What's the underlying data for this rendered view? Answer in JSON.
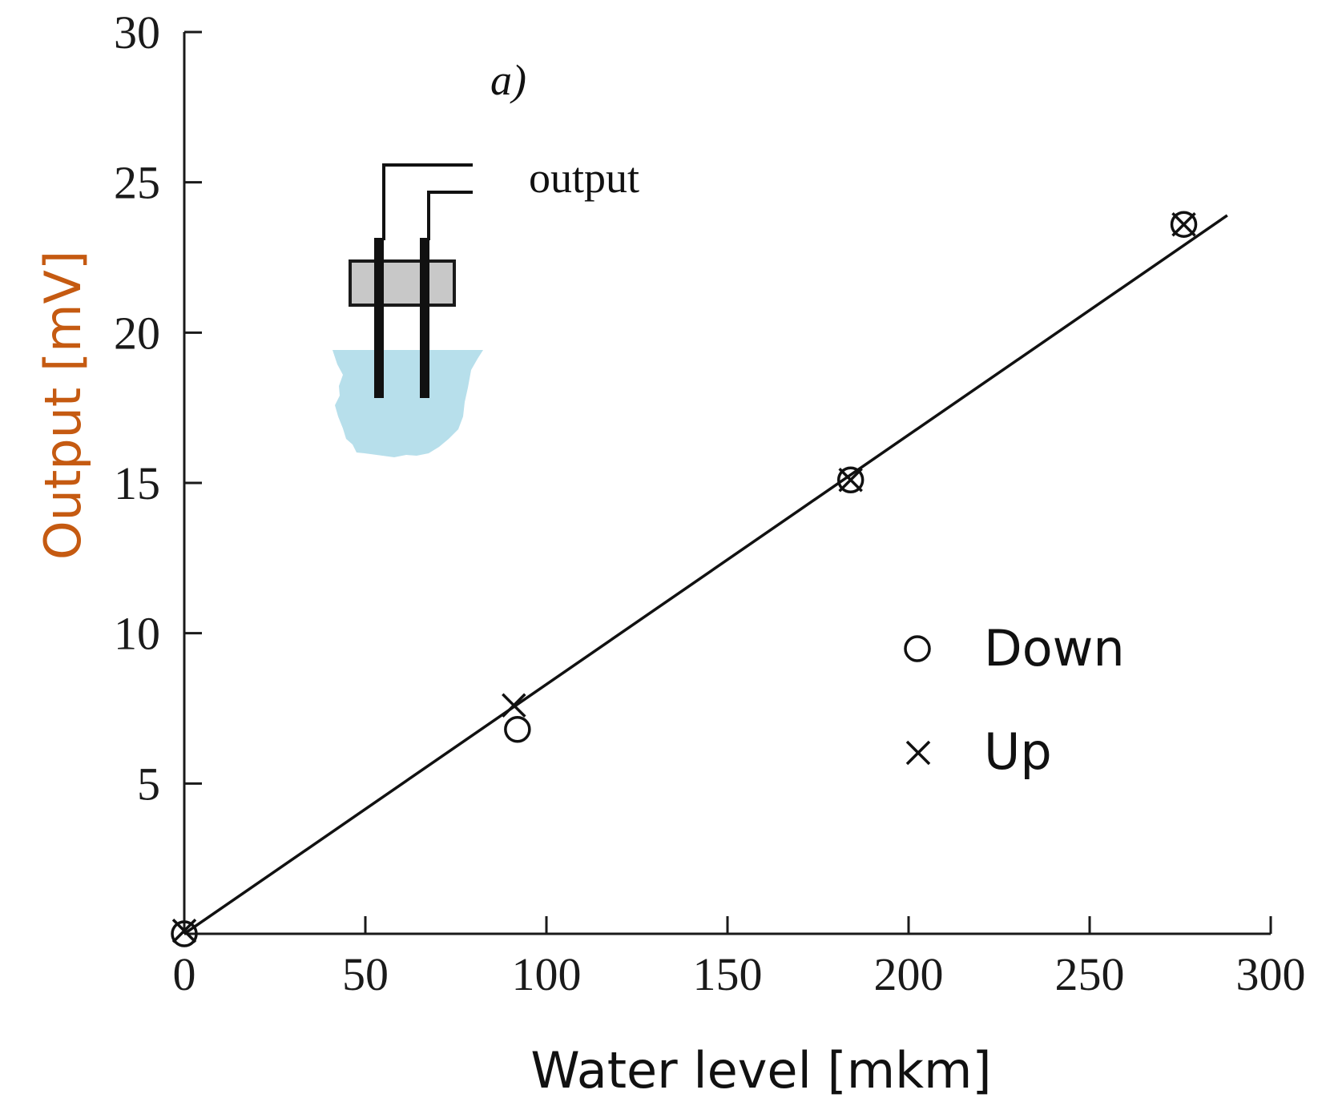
{
  "chart_data": {
    "type": "scatter",
    "panel_label": "a)",
    "xlabel": "Water level [mkm]",
    "ylabel": "Output [mV]",
    "xlim": [
      0,
      300
    ],
    "ylim": [
      0,
      30
    ],
    "xticks": [
      0,
      50,
      100,
      150,
      200,
      250,
      300
    ],
    "yticks": [
      5,
      10,
      15,
      20,
      25,
      30
    ],
    "grid": false,
    "legend_position": "right",
    "colors": {
      "axis": "#1a1a1a",
      "ylabel": "#c55a11",
      "xlabel": "#111111",
      "water": "#b7dfeb",
      "block": "#c8c8c8"
    },
    "series": [
      {
        "name": "Down",
        "marker": "circle",
        "x": [
          0,
          92,
          184,
          276
        ],
        "y": [
          0,
          6.8,
          15.1,
          23.6
        ]
      },
      {
        "name": "Up",
        "marker": "cross",
        "x": [
          0,
          91,
          184,
          276
        ],
        "y": [
          0.1,
          7.6,
          15.1,
          23.6
        ]
      }
    ],
    "fit_line": {
      "x": [
        0,
        288
      ],
      "y": [
        0,
        23.9
      ]
    },
    "inset": {
      "label": "output"
    }
  }
}
